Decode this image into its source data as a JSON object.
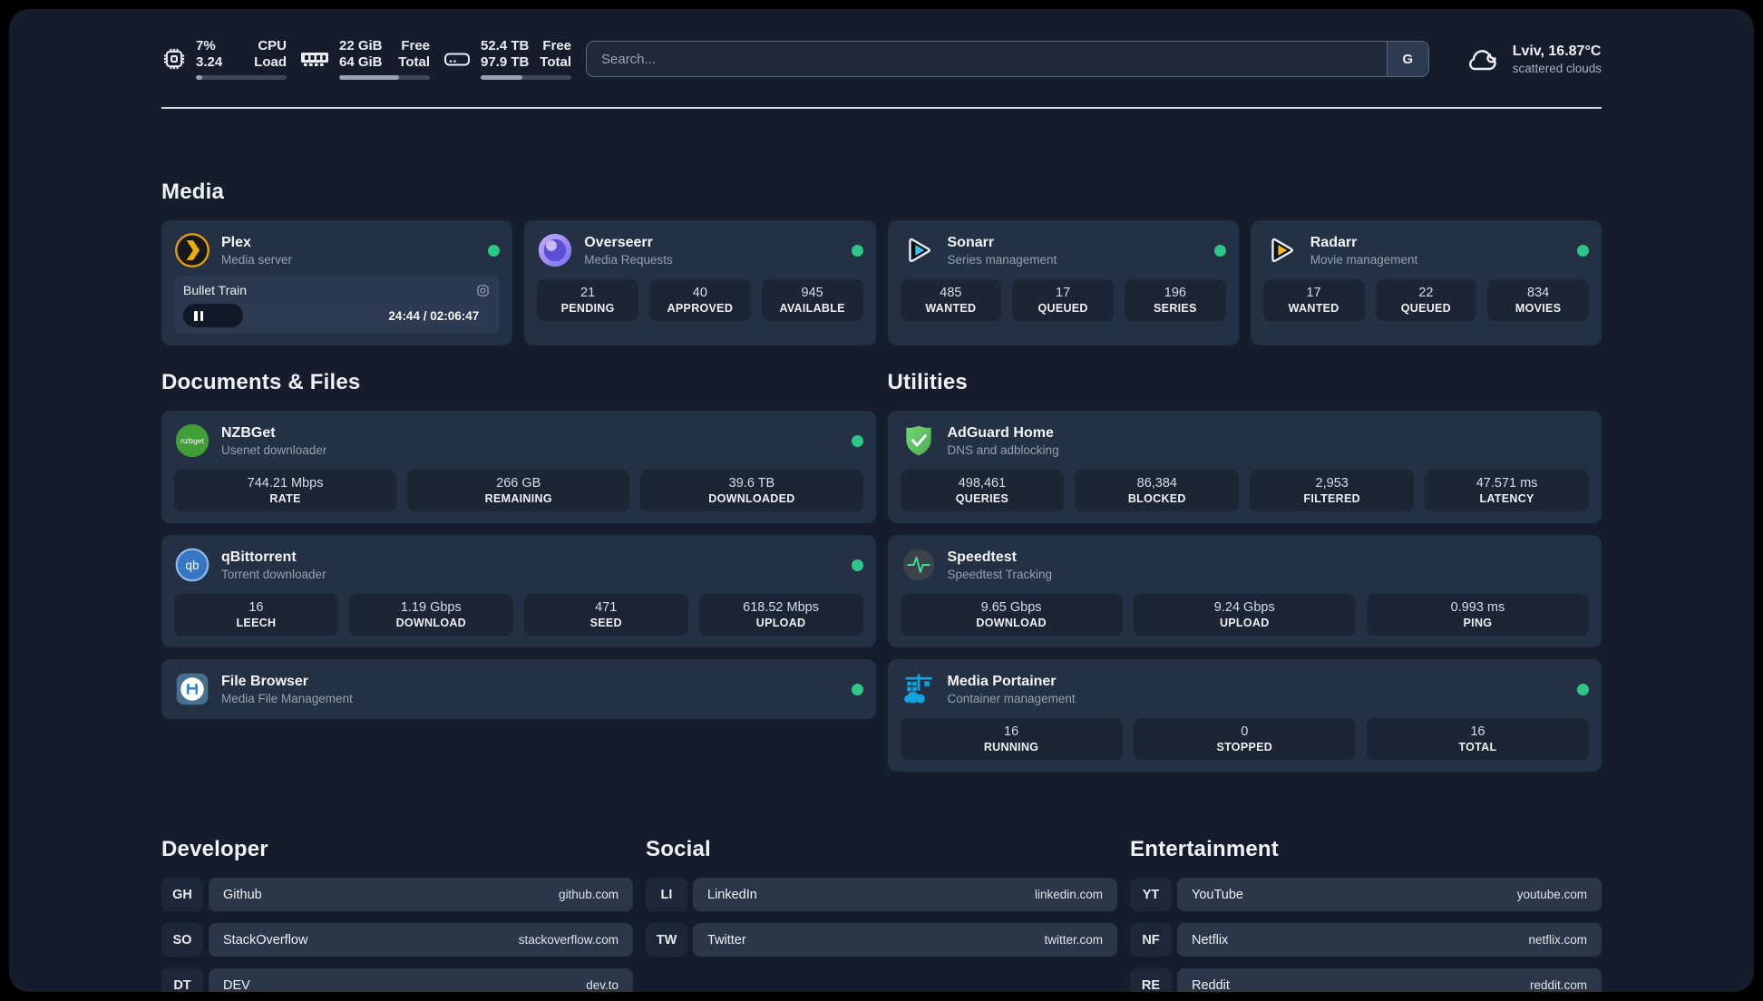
{
  "header": {
    "stats": [
      {
        "values": [
          "7%",
          "3.24"
        ],
        "labels": [
          "CPU",
          "Load"
        ],
        "progress": 7
      },
      {
        "values": [
          "22 GiB",
          "64 GiB"
        ],
        "labels": [
          "Free",
          "Total"
        ],
        "progress": 66
      },
      {
        "values": [
          "52.4 TB",
          "97.9 TB"
        ],
        "labels": [
          "Free",
          "Total"
        ],
        "progress": 46
      }
    ],
    "search": {
      "placeholder": "Search...",
      "engine_button": "G"
    },
    "weather": {
      "location": "Lviv, 16.87°C",
      "condition": "scattered clouds"
    }
  },
  "sections": {
    "media": "Media",
    "documents": "Documents & Files",
    "utilities": "Utilities"
  },
  "apps": {
    "plex": {
      "name": "Plex",
      "subtitle": "Media server",
      "player": {
        "title": "Bullet Train",
        "time": "24:44 / 02:06:47",
        "progress": 19.5
      }
    },
    "overseerr": {
      "name": "Overseerr",
      "subtitle": "Media Requests",
      "stats": [
        {
          "value": "21",
          "label": "PENDING"
        },
        {
          "value": "40",
          "label": "APPROVED"
        },
        {
          "value": "945",
          "label": "AVAILABLE"
        }
      ]
    },
    "sonarr": {
      "name": "Sonarr",
      "subtitle": "Series management",
      "stats": [
        {
          "value": "485",
          "label": "WANTED"
        },
        {
          "value": "17",
          "label": "QUEUED"
        },
        {
          "value": "196",
          "label": "SERIES"
        }
      ]
    },
    "radarr": {
      "name": "Radarr",
      "subtitle": "Movie management",
      "stats": [
        {
          "value": "17",
          "label": "WANTED"
        },
        {
          "value": "22",
          "label": "QUEUED"
        },
        {
          "value": "834",
          "label": "MOVIES"
        }
      ]
    },
    "nzbget": {
      "name": "NZBGet",
      "subtitle": "Usenet downloader",
      "stats": [
        {
          "value": "744.21 Mbps",
          "label": "RATE"
        },
        {
          "value": "266 GB",
          "label": "REMAINING"
        },
        {
          "value": "39.6 TB",
          "label": "DOWNLOADED"
        }
      ]
    },
    "qbittorrent": {
      "name": "qBittorrent",
      "subtitle": "Torrent downloader",
      "stats": [
        {
          "value": "16",
          "label": "LEECH"
        },
        {
          "value": "1.19 Gbps",
          "label": "DOWNLOAD"
        },
        {
          "value": "471",
          "label": "SEED"
        },
        {
          "value": "618.52 Mbps",
          "label": "UPLOAD"
        }
      ]
    },
    "filebrowser": {
      "name": "File Browser",
      "subtitle": "Media File Management"
    },
    "adguard": {
      "name": "AdGuard Home",
      "subtitle": "DNS and adblocking",
      "stats": [
        {
          "value": "498,461",
          "label": "QUERIES"
        },
        {
          "value": "86,384",
          "label": "BLOCKED"
        },
        {
          "value": "2,953",
          "label": "FILTERED"
        },
        {
          "value": "47.571 ms",
          "label": "LATENCY"
        }
      ]
    },
    "speedtest": {
      "name": "Speedtest",
      "subtitle": "Speedtest Tracking",
      "stats": [
        {
          "value": "9.65 Gbps",
          "label": "DOWNLOAD"
        },
        {
          "value": "9.24 Gbps",
          "label": "UPLOAD"
        },
        {
          "value": "0.993 ms",
          "label": "PING"
        }
      ]
    },
    "portainer": {
      "name": "Media Portainer",
      "subtitle": "Container management",
      "stats": [
        {
          "value": "16",
          "label": "RUNNING"
        },
        {
          "value": "0",
          "label": "STOPPED"
        },
        {
          "value": "16",
          "label": "TOTAL"
        }
      ]
    }
  },
  "links": {
    "developer": {
      "title": "Developer",
      "items": [
        {
          "tag": "GH",
          "name": "Github",
          "url": "github.com"
        },
        {
          "tag": "SO",
          "name": "StackOverflow",
          "url": "stackoverflow.com"
        },
        {
          "tag": "DT",
          "name": "DEV",
          "url": "dev.to"
        }
      ]
    },
    "social": {
      "title": "Social",
      "items": [
        {
          "tag": "LI",
          "name": "LinkedIn",
          "url": "linkedin.com"
        },
        {
          "tag": "TW",
          "name": "Twitter",
          "url": "twitter.com"
        }
      ]
    },
    "entertainment": {
      "title": "Entertainment",
      "items": [
        {
          "tag": "YT",
          "name": "YouTube",
          "url": "youtube.com"
        },
        {
          "tag": "NF",
          "name": "Netflix",
          "url": "netflix.com"
        },
        {
          "tag": "RE",
          "name": "Reddit",
          "url": "reddit.com"
        }
      ]
    }
  },
  "colors": {
    "status_online": "#2cc689",
    "plex_accent": "#e5a00d",
    "sonarr_accent": "#36c3f1",
    "radarr_accent": "#f9b81e",
    "page_bg": "#151c2c",
    "card_bg": "#243043"
  }
}
